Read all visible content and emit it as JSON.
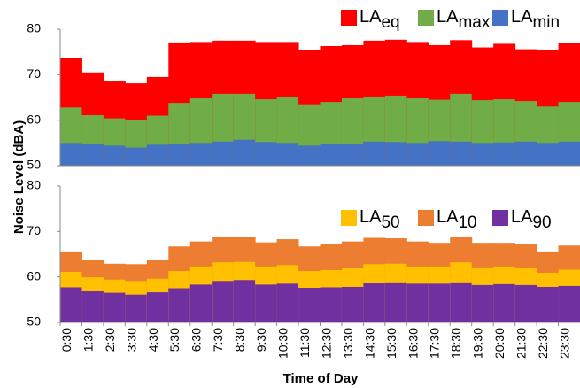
{
  "chart_data": [
    {
      "type": "area-step",
      "y_label": "Noise Level (dBA)",
      "ylim": [
        50,
        80
      ],
      "yticks": [
        50,
        60,
        70,
        80
      ],
      "series": [
        {
          "name": "LAeq",
          "color": "#ff0000",
          "values": [
            73.7,
            70.5,
            68.5,
            68.1,
            69.5,
            77.1,
            77.2,
            77.5,
            77.5,
            77.2,
            77.2,
            75.5,
            76.3,
            76.5,
            77.5,
            77.7,
            77.2,
            76.5,
            77.6,
            76.0,
            76.8,
            75.6,
            75.4,
            77.0
          ]
        },
        {
          "name": "LAmax",
          "color": "#70ad47",
          "values": [
            62.8,
            61.1,
            60.4,
            60.1,
            61.0,
            63.8,
            64.8,
            65.8,
            65.8,
            64.6,
            65.1,
            63.5,
            64.0,
            64.8,
            65.2,
            65.4,
            64.8,
            64.5,
            65.8,
            64.4,
            64.6,
            64.2,
            63.0,
            64.0
          ]
        },
        {
          "name": "LAmin",
          "color": "#4472c4",
          "values": [
            55.0,
            54.7,
            54.4,
            54.0,
            54.6,
            54.8,
            55.0,
            55.3,
            55.7,
            55.2,
            55.0,
            54.4,
            54.7,
            54.8,
            55.3,
            55.2,
            55.0,
            55.4,
            55.3,
            55.0,
            55.1,
            55.3,
            55.0,
            55.3
          ]
        }
      ]
    },
    {
      "type": "area-step",
      "x_label": "Time of Day",
      "categories": [
        "0:30",
        "1:30",
        "2:30",
        "3:30",
        "4:30",
        "5:30",
        "6:30",
        "7:30",
        "8:30",
        "9:30",
        "10:30",
        "11:30",
        "12:30",
        "13:30",
        "14:30",
        "15:30",
        "16:30",
        "17:30",
        "18:30",
        "19:30",
        "20:30",
        "21:30",
        "22:30",
        "23:30"
      ],
      "ylim": [
        50,
        80
      ],
      "yticks": [
        50,
        60,
        70,
        80
      ],
      "series": [
        {
          "name": "LA50",
          "color": "#ffc000",
          "values": [
            61.1,
            59.9,
            59.4,
            59.1,
            59.6,
            61.3,
            62.3,
            63.2,
            63.3,
            62.3,
            62.6,
            61.3,
            61.5,
            62.0,
            62.8,
            62.9,
            62.3,
            62.3,
            63.2,
            62.1,
            62.3,
            62.0,
            60.9,
            61.6
          ]
        },
        {
          "name": "LA10",
          "color": "#ed7d31",
          "values": [
            65.6,
            63.8,
            62.9,
            62.8,
            63.8,
            66.7,
            67.8,
            68.9,
            68.9,
            67.6,
            68.3,
            66.7,
            67.2,
            67.8,
            68.6,
            68.5,
            67.8,
            67.5,
            68.9,
            67.5,
            67.5,
            67.3,
            65.6,
            66.9
          ]
        },
        {
          "name": "LA90",
          "color": "#7030a0",
          "values": [
            57.7,
            57.0,
            56.5,
            56.1,
            56.6,
            57.5,
            58.3,
            59.1,
            59.3,
            58.3,
            58.5,
            57.6,
            57.7,
            57.8,
            58.6,
            58.8,
            58.5,
            58.5,
            58.8,
            58.2,
            58.4,
            58.2,
            57.8,
            58.0
          ]
        }
      ]
    }
  ]
}
